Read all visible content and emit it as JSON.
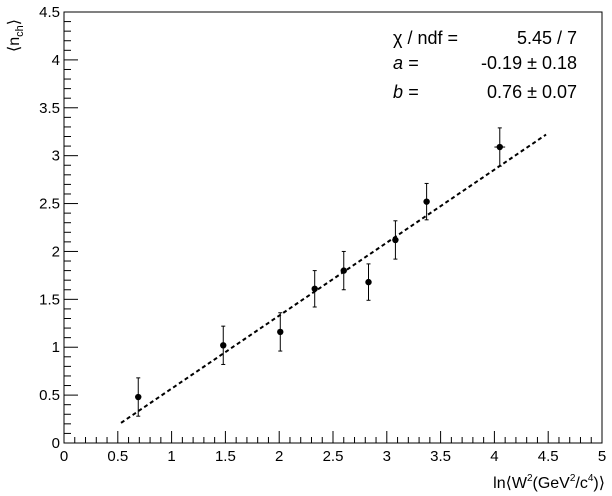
{
  "chart_data": {
    "type": "scatter",
    "title": "",
    "xlabel": {
      "main": "ln⟨W",
      "sup1": "2",
      "mid": "(GeV",
      "sup2": "2",
      "mid2": "/c",
      "sup3": "4",
      "end": ")⟩"
    },
    "ylabel": {
      "main": "⟨n",
      "sub": "ch",
      "end": "⟩"
    },
    "xlim": [
      0,
      5
    ],
    "ylim": [
      0,
      4.5
    ],
    "x_ticks": [
      "0",
      "0.5",
      "1",
      "1.5",
      "2",
      "2.5",
      "3",
      "3.5",
      "4",
      "4.5",
      "5"
    ],
    "y_ticks": [
      "0",
      "0.5",
      "1",
      "1.5",
      "2",
      "2.5",
      "3",
      "3.5",
      "4",
      "4.5"
    ],
    "grid": false,
    "series": [
      {
        "type": "scatter",
        "points": [
          {
            "x": 0.69,
            "y": 0.48,
            "yerr": 0.2,
            "xerr": 0
          },
          {
            "x": 1.48,
            "y": 1.02,
            "yerr": 0.2,
            "xerr": 0
          },
          {
            "x": 2.01,
            "y": 1.16,
            "yerr": 0.2,
            "xerr": 0
          },
          {
            "x": 2.33,
            "y": 1.61,
            "yerr": 0.19,
            "xerr": 0
          },
          {
            "x": 2.6,
            "y": 1.8,
            "yerr": 0.2,
            "xerr": 0
          },
          {
            "x": 2.83,
            "y": 1.68,
            "yerr": 0.19,
            "xerr": 0
          },
          {
            "x": 3.08,
            "y": 2.12,
            "yerr": 0.2,
            "xerr": 0
          },
          {
            "x": 3.37,
            "y": 2.52,
            "yerr": 0.19,
            "xerr": 0
          },
          {
            "x": 4.05,
            "y": 3.09,
            "yerr": 0.2,
            "xerr": 0.05
          }
        ]
      },
      {
        "type": "line",
        "style": "dashed",
        "x": [
          0.53,
          4.48
        ],
        "y": [
          0.21,
          3.22
        ]
      }
    ],
    "stats": {
      "rows": [
        {
          "label": "χ / ndf =",
          "value": "5.45 / 7"
        },
        {
          "label": "a =",
          "value": "-0.19 ± 0.18"
        },
        {
          "label": "b =",
          "value": "0.76 ± 0.07"
        }
      ]
    }
  }
}
